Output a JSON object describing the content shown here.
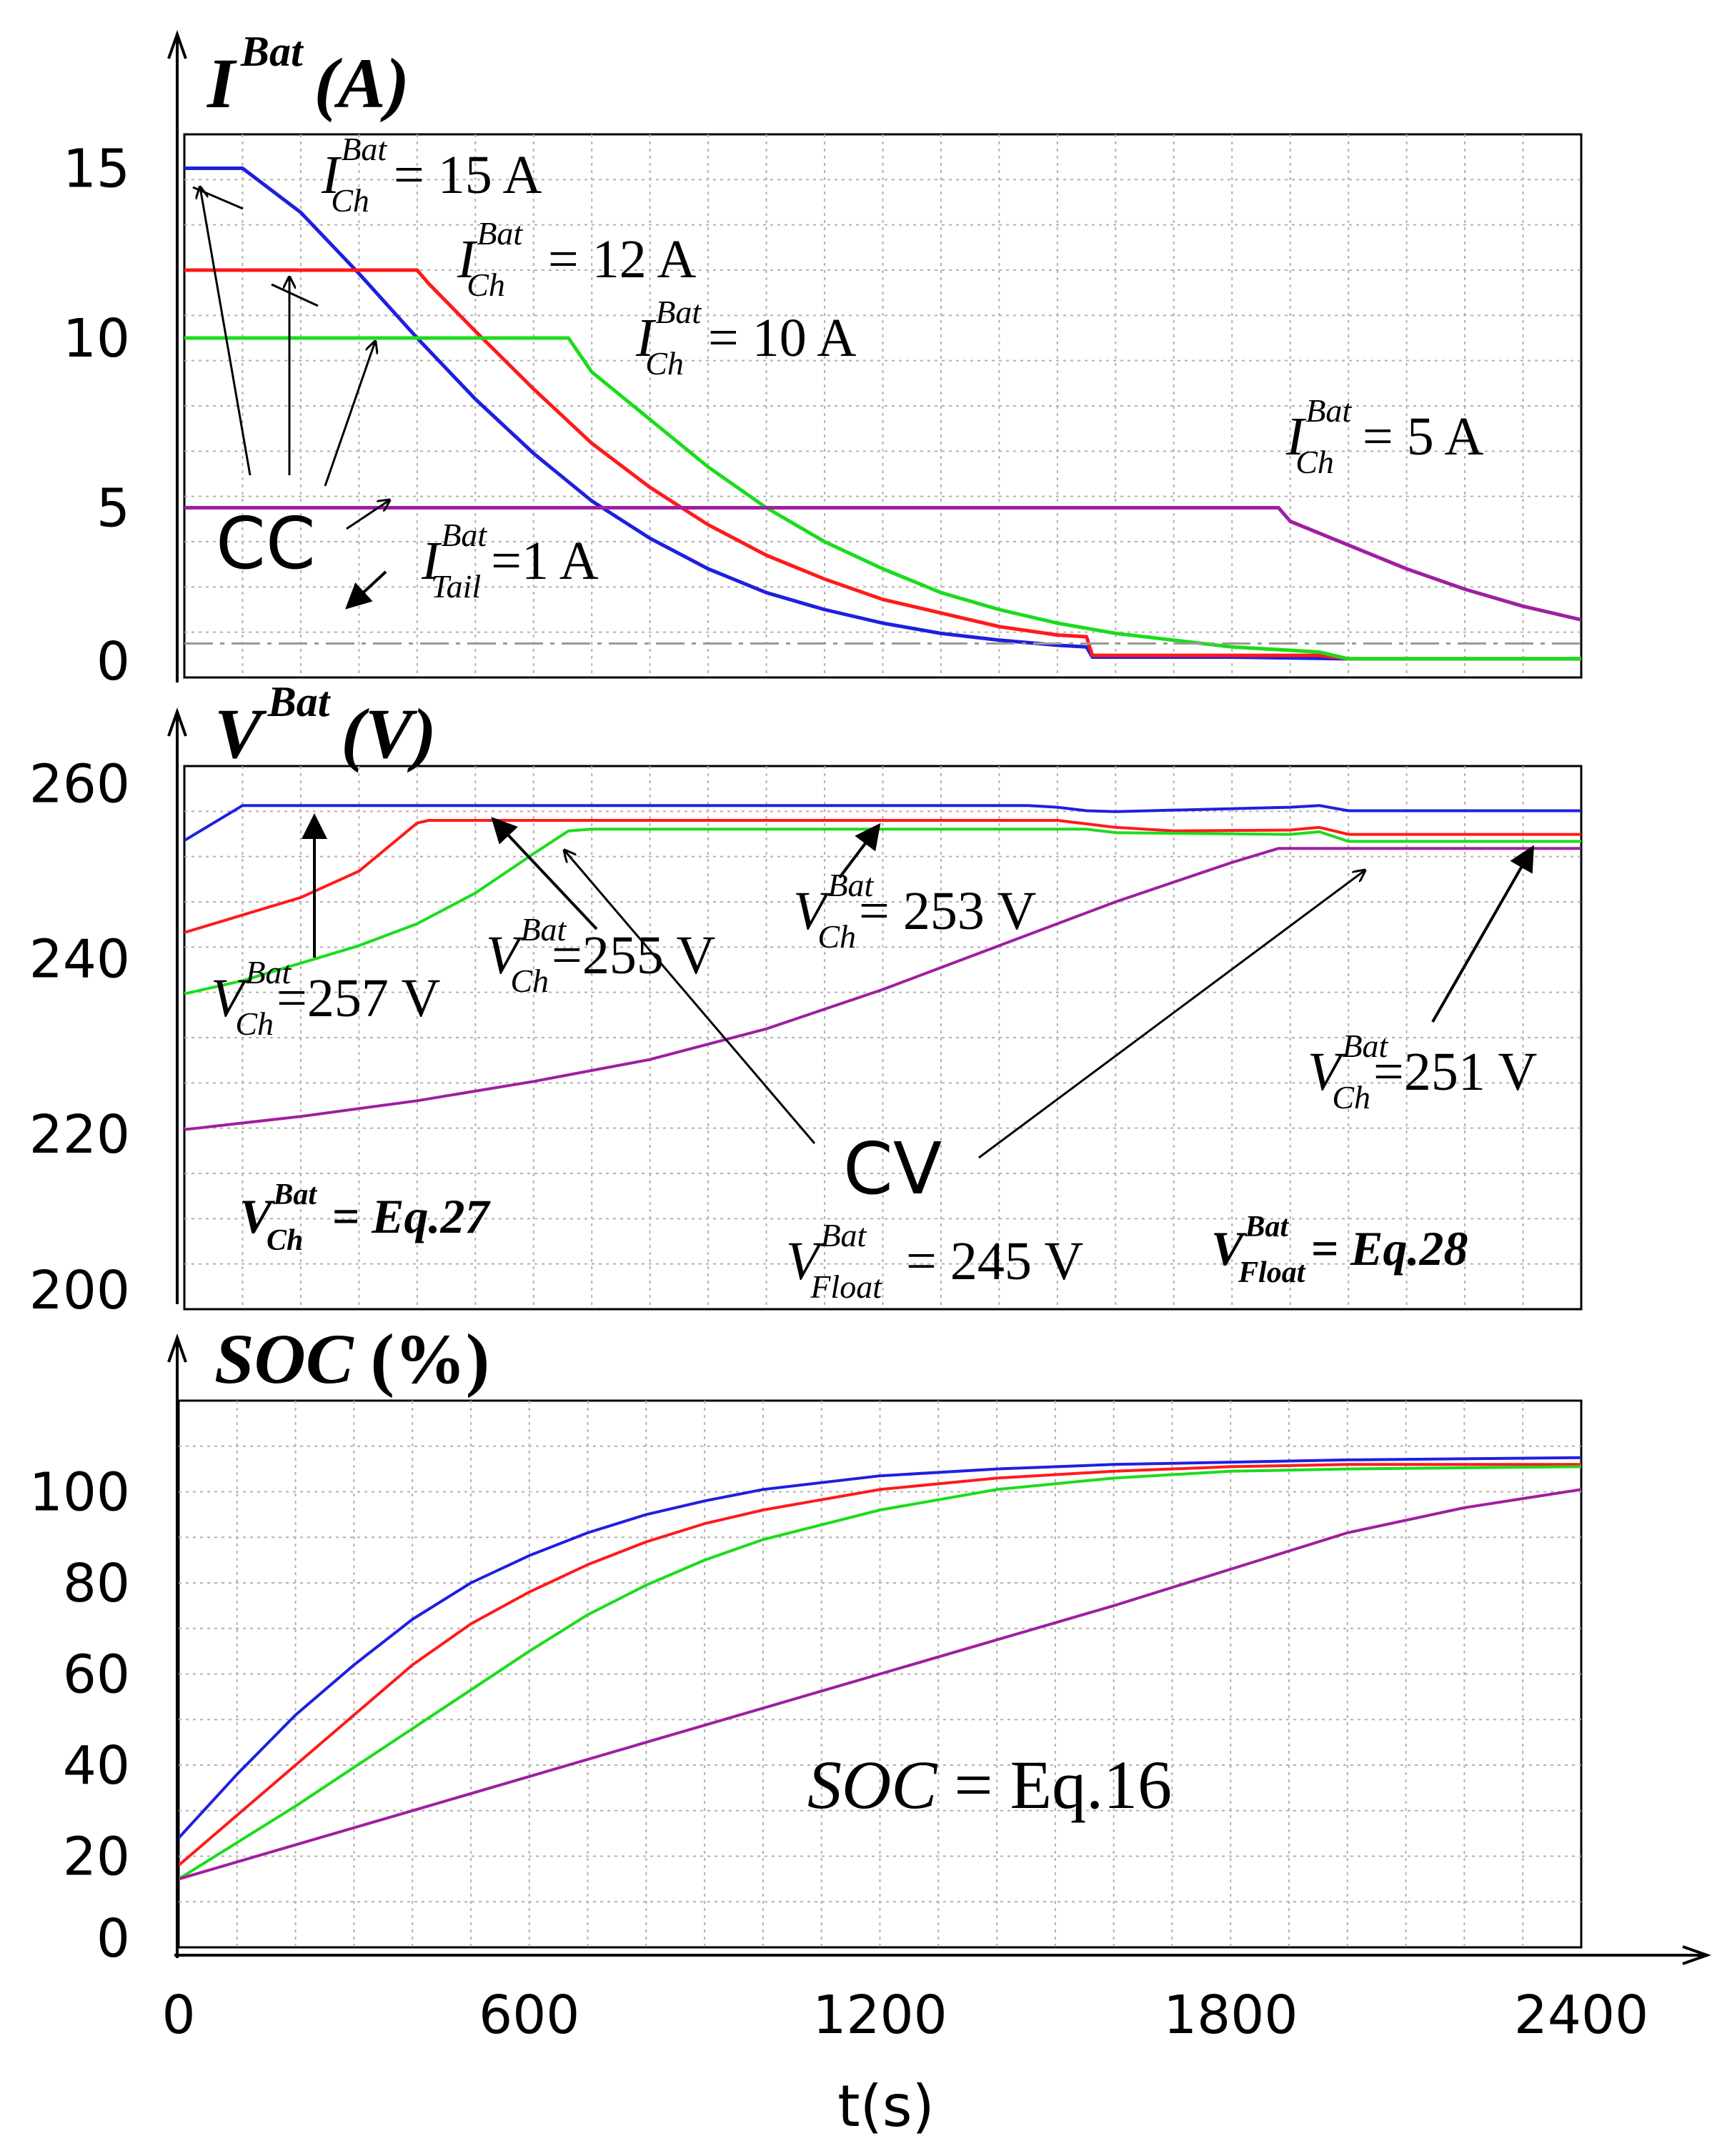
{
  "chart_data": [
    {
      "type": "line",
      "title": "",
      "ylabel": {
        "base": "I",
        "sup": "Bat",
        "unit": "(A)"
      },
      "xlabel": "t(s)",
      "xlim": [
        0,
        2400
      ],
      "ylim": [
        0,
        16
      ],
      "yticks": [
        "0",
        "5",
        "10",
        "15"
      ],
      "yticks_values": [
        0,
        5,
        10,
        15
      ],
      "grid": true,
      "tail_current_line": 1,
      "series": [
        {
          "name": "ICh=15 A",
          "color": "#1f1fe0",
          "x": [
            0,
            100,
            200,
            300,
            400,
            500,
            600,
            700,
            800,
            900,
            1000,
            1100,
            1200,
            1300,
            1400,
            1500,
            1550,
            1560,
            1600,
            1800,
            2000,
            2300,
            2400
          ],
          "values": [
            15,
            15,
            13.7,
            11.9,
            10.0,
            8.2,
            6.6,
            5.2,
            4.1,
            3.2,
            2.5,
            2.0,
            1.6,
            1.3,
            1.1,
            0.95,
            0.9,
            0.6,
            0.6,
            0.6,
            0.55,
            0.55,
            0.55
          ]
        },
        {
          "name": "ICh=12 A",
          "color": "#ff1a1a",
          "x": [
            0,
            100,
            200,
            300,
            400,
            420,
            500,
            600,
            700,
            800,
            900,
            1000,
            1100,
            1200,
            1300,
            1400,
            1500,
            1550,
            1560,
            1800,
            1950,
            2000,
            2400
          ],
          "values": [
            12,
            12,
            12,
            12,
            12,
            11.6,
            10.2,
            8.5,
            6.9,
            5.6,
            4.5,
            3.6,
            2.9,
            2.3,
            1.9,
            1.5,
            1.25,
            1.2,
            0.65,
            0.65,
            0.65,
            0.55,
            0.55
          ]
        },
        {
          "name": "ICh=10 A",
          "color": "#1bdc1b",
          "x": [
            0,
            200,
            400,
            600,
            660,
            700,
            800,
            900,
            1000,
            1100,
            1200,
            1300,
            1400,
            1500,
            1600,
            1700,
            1800,
            1900,
            1950,
            2000,
            2400
          ],
          "values": [
            10,
            10,
            10,
            10,
            10,
            9.0,
            7.6,
            6.2,
            5.0,
            4.0,
            3.2,
            2.5,
            2.0,
            1.6,
            1.3,
            1.1,
            0.9,
            0.8,
            0.75,
            0.55,
            0.55
          ]
        },
        {
          "name": "ICh=5 A",
          "color": "#a01ea0",
          "x": [
            0,
            400,
            800,
            1200,
            1600,
            1840,
            1880,
            1900,
            2000,
            2100,
            2200,
            2300,
            2400
          ],
          "values": [
            5,
            5,
            5,
            5,
            5,
            5,
            5,
            4.6,
            3.9,
            3.2,
            2.6,
            2.1,
            1.7
          ]
        }
      ],
      "annotations": [
        {
          "base": "I",
          "sub": "Ch",
          "sup": "Bat",
          "text": "= 15 A"
        },
        {
          "base": "I",
          "sub": "Ch",
          "sup": "Bat",
          "text": "= 12 A"
        },
        {
          "base": "I",
          "sub": "Ch",
          "sup": "Bat",
          "text": "= 10 A"
        },
        {
          "base": "I",
          "sub": "Ch",
          "sup": "Bat",
          "text": "= 5 A"
        },
        {
          "base": "I",
          "sub": "Tail",
          "sup": "Bat",
          "text": "=1 A"
        }
      ],
      "mode_label": "CC"
    },
    {
      "type": "line",
      "ylabel": {
        "base": "V",
        "sup": "Bat",
        "unit": "(V)"
      },
      "xlim": [
        0,
        2400
      ],
      "ylim": [
        200,
        262
      ],
      "yticks": [
        "200",
        "220",
        "240",
        "260"
      ],
      "yticks_values": [
        200,
        220,
        240,
        260
      ],
      "grid": true,
      "series": [
        {
          "name": "VCh=257 V",
          "color": "#1f1fe0",
          "x": [
            0,
            100,
            1450,
            1500,
            1550,
            1600,
            1900,
            1950,
            2000,
            2400
          ],
          "values": [
            253.5,
            257.5,
            257.5,
            257.3,
            256.9,
            256.8,
            257.3,
            257.5,
            256.9,
            256.9
          ]
        },
        {
          "name": "VCh=255 V",
          "color": "#ff1a1a",
          "x": [
            0,
            100,
            200,
            300,
            400,
            420,
            1500,
            1550,
            1600,
            1700,
            1900,
            1950,
            2000,
            2400
          ],
          "values": [
            243,
            245,
            247,
            250,
            255.5,
            255.8,
            255.8,
            255.4,
            255,
            254.6,
            254.7,
            255,
            254.2,
            254.2
          ]
        },
        {
          "name": "VCh=253 V",
          "color": "#1bdc1b",
          "x": [
            0,
            100,
            200,
            300,
            400,
            500,
            600,
            660,
            700,
            1550,
            1600,
            1900,
            1950,
            2000,
            2400
          ],
          "values": [
            236,
            237.5,
            239.5,
            241.5,
            244,
            247.5,
            252,
            254.6,
            254.8,
            254.8,
            254.4,
            254.2,
            254.5,
            253.4,
            253.4
          ]
        },
        {
          "name": "VCh=251 V",
          "color": "#a01ea0",
          "x": [
            0,
            200,
            400,
            600,
            800,
            1000,
            1200,
            1400,
            1600,
            1800,
            1880,
            2000,
            2400
          ],
          "values": [
            220.5,
            222,
            223.8,
            226,
            228.5,
            232,
            236.5,
            241.5,
            246.5,
            251,
            252.6,
            252.6,
            252.6
          ]
        }
      ],
      "annotations": [
        {
          "base": "V",
          "sub": "Ch",
          "sup": "Bat",
          "text": "=257 V"
        },
        {
          "base": "V",
          "sub": "Ch",
          "sup": "Bat",
          "text": "=255 V"
        },
        {
          "base": "V",
          "sub": "Ch",
          "sup": "Bat",
          "text": "= 253 V"
        },
        {
          "base": "V",
          "sub": "Ch",
          "sup": "Bat",
          "text": "=251 V"
        },
        {
          "base": "V",
          "sub": "Ch",
          "sup": "Bat",
          "text": "= Eq.27"
        },
        {
          "base": "V",
          "sub": "Float",
          "sup": "Bat",
          "text": "= 245 V"
        },
        {
          "base": "V",
          "sub": "Float",
          "sup": "Bat",
          "text": "= Eq.28"
        }
      ],
      "mode_label": "CV"
    },
    {
      "type": "line",
      "ylabel": {
        "base": "SOC",
        "unit": "(%)"
      },
      "xlabel": "t(s)",
      "xlim": [
        0,
        2400
      ],
      "ylim": [
        0,
        120
      ],
      "yticks": [
        "0",
        "20",
        "40",
        "60",
        "80",
        "100"
      ],
      "yticks_values": [
        0,
        20,
        40,
        60,
        80,
        100
      ],
      "xticks": [
        "0",
        "600",
        "1200",
        "1800",
        "2400"
      ],
      "xticks_values": [
        0,
        600,
        1200,
        1800,
        2400
      ],
      "grid": true,
      "series": [
        {
          "name": "15 A",
          "color": "#1f1fe0",
          "x": [
            0,
            100,
            200,
            300,
            400,
            500,
            600,
            700,
            800,
            900,
            1000,
            1200,
            1400,
            1600,
            1800,
            2000,
            2400
          ],
          "values": [
            24,
            38,
            51,
            62,
            72,
            80,
            86,
            91,
            95,
            98,
            100.5,
            103.5,
            105,
            106,
            106.5,
            107,
            107.5
          ]
        },
        {
          "name": "12 A",
          "color": "#ff1a1a",
          "x": [
            0,
            100,
            200,
            300,
            400,
            500,
            600,
            700,
            800,
            900,
            1000,
            1200,
            1400,
            1600,
            1800,
            2000,
            2400
          ],
          "values": [
            18,
            29,
            40,
            51,
            62,
            71,
            78,
            84,
            89,
            93,
            96,
            100.5,
            103,
            104.5,
            105.5,
            106,
            106
          ]
        },
        {
          "name": "10 A",
          "color": "#1bdc1b",
          "x": [
            0,
            100,
            200,
            300,
            400,
            500,
            600,
            700,
            800,
            900,
            1000,
            1200,
            1400,
            1600,
            1800,
            2000,
            2400
          ],
          "values": [
            15,
            23,
            31,
            39.5,
            48,
            56.5,
            65,
            73,
            79.5,
            85,
            89.5,
            96,
            100.5,
            103,
            104.5,
            105,
            105.5
          ]
        },
        {
          "name": "5 A",
          "color": "#a01ea0",
          "x": [
            0,
            200,
            400,
            600,
            800,
            1000,
            1200,
            1400,
            1600,
            1800,
            1900,
            2000,
            2200,
            2400
          ],
          "values": [
            15,
            22.5,
            30,
            37.5,
            45,
            52.5,
            60,
            67.5,
            75,
            83,
            87,
            91,
            96.5,
            100.5
          ]
        }
      ],
      "annotations": [
        {
          "base": "SOC",
          "text": "= Eq.16"
        }
      ]
    }
  ]
}
